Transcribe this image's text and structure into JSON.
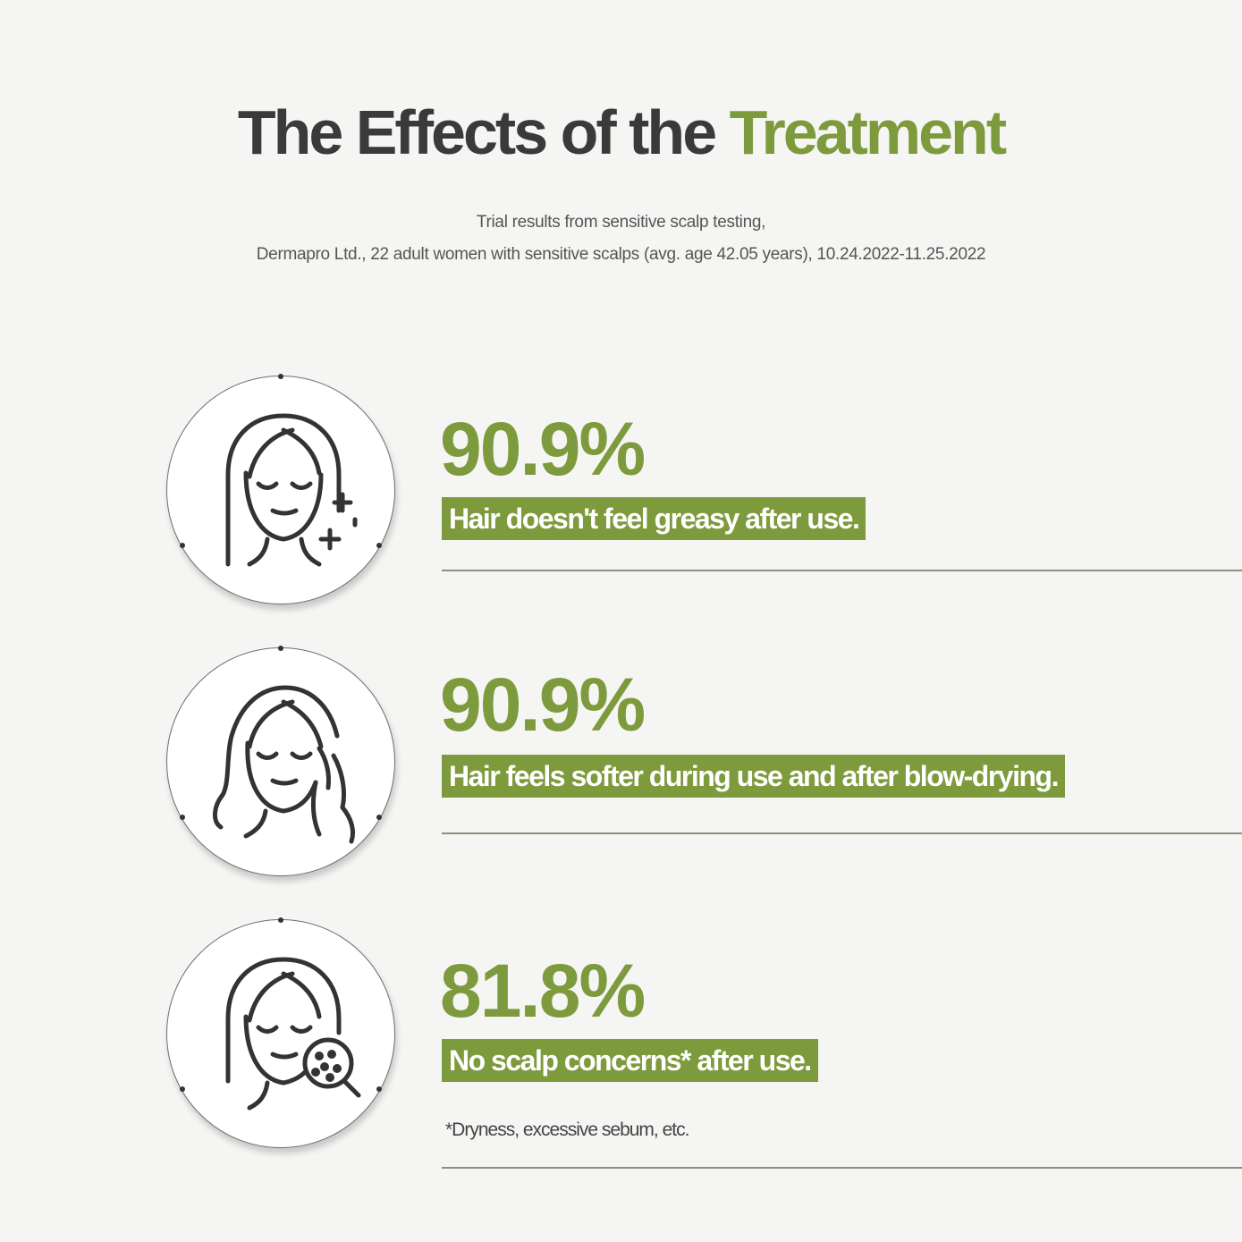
{
  "header": {
    "title_main": "The Effects of the ",
    "title_accent": "Treatment",
    "subtitle_line1": "Trial results from sensitive scalp testing,",
    "subtitle_line2": "Dermapro Ltd., 22 adult women with sensitive scalps (avg. age 42.05 years), 10.24.2022-11.25.2022"
  },
  "results": [
    {
      "percent": "90.9%",
      "label": "Hair doesn't feel greasy after use.",
      "icon": "woman-sparkle-icon"
    },
    {
      "percent": "90.9%",
      "label": "Hair feels softer during use and after blow-drying.",
      "icon": "woman-touching-hair-icon"
    },
    {
      "percent": "81.8%",
      "label": "No scalp concerns* after use.",
      "icon": "woman-magnifier-icon"
    }
  ],
  "footnote": "*Dryness, excessive sebum, etc.",
  "colors": {
    "accent": "#7d9a3c",
    "text_dark": "#3a3a3a",
    "background": "#f5f5f3"
  }
}
